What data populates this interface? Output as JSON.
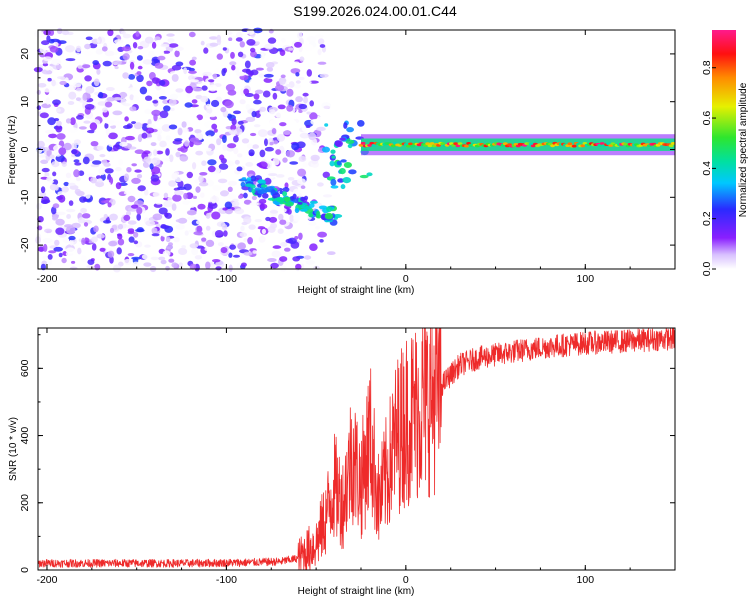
{
  "title": "S199.2026.024.00.01.C44",
  "colors": {
    "snr_line": "#ee2a2a",
    "background": "#ffffff",
    "frame": "#000000"
  },
  "chart_data": [
    {
      "type": "heatmap",
      "name": "spectrogram",
      "xlabel": "Height of straight line (km)",
      "ylabel": "Frequency (Hz)",
      "xlim": [
        -205,
        150
      ],
      "ylim": [
        -25,
        25
      ],
      "xticks": [
        -200,
        -100,
        0,
        100
      ],
      "xtick_labels": [
        "-200",
        "-100",
        "0",
        "100"
      ],
      "yticks": [
        -20,
        -10,
        0,
        10,
        20
      ],
      "ytick_labels": [
        "-20",
        "-10",
        "0",
        "10",
        "20"
      ],
      "grid": false,
      "colormap": "rainbow (white-violet-blue-cyan-green-yellow-orange-red-pink)",
      "colorbar": {
        "label": "Normalized spectral amplitude",
        "range": [
          0,
          0.95
        ],
        "ticks": [
          0,
          0.2,
          0.4,
          0.6,
          0.8
        ],
        "tick_labels": [
          "0.0",
          "0.2",
          "0.4",
          "0.6",
          "0.8"
        ]
      },
      "features": [
        {
          "description": "scattered noise",
          "x_range": [
            -205,
            -60
          ],
          "freq_range": [
            -25,
            25
          ],
          "amplitude": [
            0.0,
            0.25
          ]
        },
        {
          "description": "diagonal descending branch",
          "x_from": -90,
          "x_to": -40,
          "freq_from": -7,
          "freq_to": -14,
          "amplitude": [
            0.2,
            0.5
          ]
        },
        {
          "description": "steady tone",
          "x_range": [
            -25,
            150
          ],
          "freq": 1,
          "amplitude": [
            0.4,
            0.95
          ]
        }
      ]
    },
    {
      "type": "line",
      "name": "snr",
      "xlabel": "Height of straight line (km)",
      "ylabel": "SNR (10 * v/v)",
      "xlim": [
        -205,
        150
      ],
      "ylim": [
        0,
        720
      ],
      "xticks": [
        -200,
        -100,
        0,
        100
      ],
      "xtick_labels": [
        "-200",
        "-100",
        "0",
        "100"
      ],
      "yticks": [
        0,
        200,
        400,
        600
      ],
      "ytick_labels": [
        "0",
        "200",
        "400",
        "600"
      ],
      "grid": false,
      "series": [
        {
          "name": "SNR",
          "x": [
            -205,
            -180,
            -150,
            -120,
            -90,
            -70,
            -60,
            -50,
            -45,
            -40,
            -35,
            -30,
            -25,
            -20,
            -15,
            -10,
            -5,
            0,
            5,
            10,
            15,
            20,
            25,
            30,
            40,
            50,
            60,
            80,
            100,
            120,
            150
          ],
          "y": [
            20,
            20,
            20,
            20,
            22,
            25,
            35,
            80,
            150,
            250,
            200,
            350,
            250,
            400,
            200,
            300,
            400,
            450,
            470,
            500,
            520,
            550,
            580,
            610,
            630,
            640,
            650,
            665,
            675,
            680,
            690
          ]
        }
      ]
    }
  ]
}
